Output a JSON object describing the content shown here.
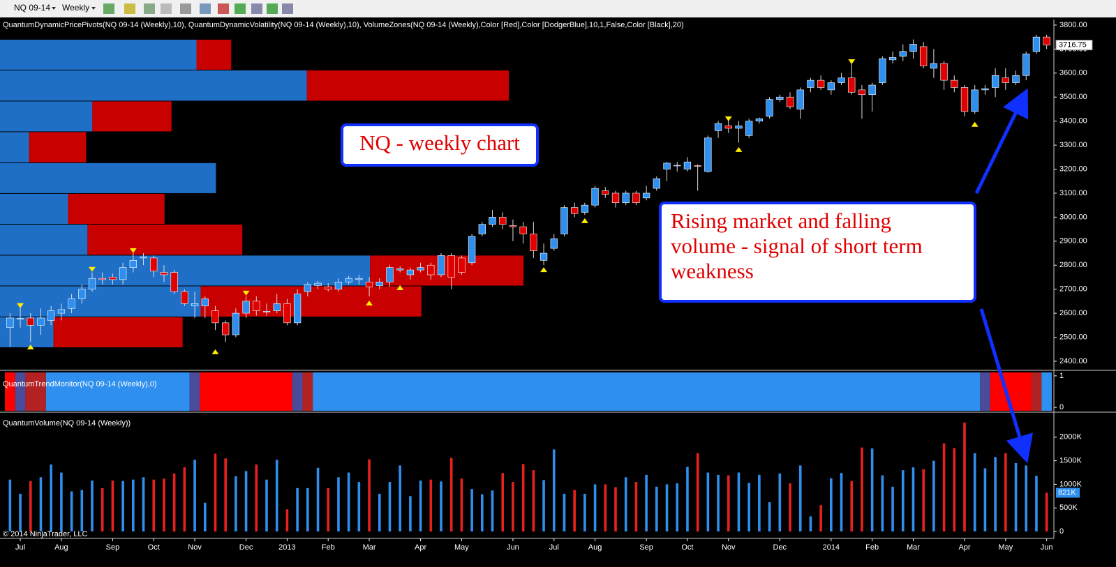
{
  "toolbar": {
    "instrument": "NQ 09-14",
    "interval": "Weekly"
  },
  "chart_data": [
    {
      "type": "candlestick",
      "indicator_label": "QuantumDynamicPricePivots(NQ 09-14 (Weekly),10), QuantumDynamicVolatility(NQ 09-14 (Weekly),10), VolumeZones(NQ 09-14 (Weekly),Color [Red],Color [DodgerBlue],10,1,False,Color [Black],20)",
      "open": [
        2540,
        2575,
        2580,
        2550,
        2570,
        2600,
        2620,
        2660,
        2700,
        2745,
        2750,
        2740,
        2790,
        2830,
        2830,
        2770,
        2770,
        2690,
        2630,
        2630,
        2610,
        2560,
        2510,
        2600,
        2650,
        2605,
        2610,
        2640,
        2560,
        2690,
        2715,
        2710,
        2700,
        2730,
        2740,
        2730,
        2715,
        2730,
        2780,
        2760,
        2780,
        2800,
        2760,
        2840,
        2830,
        2810,
        2930,
        2970,
        3000,
        2965,
        2960,
        2930,
        2820,
        2870,
        2930,
        3040,
        3020,
        3050,
        3110,
        3100,
        3060,
        3100,
        3080,
        3120,
        3200,
        3215,
        3200,
        3215,
        3190,
        3360,
        3380,
        3370,
        3340,
        3400,
        3420,
        3490,
        3500,
        3450,
        3540,
        3570,
        3530,
        3560,
        3580,
        3530,
        3510,
        3560,
        3655,
        3670,
        3690,
        3710,
        3620,
        3640,
        3570,
        3540,
        3440,
        3530,
        3540,
        3580,
        3560,
        3590,
        3690,
        3750
      ],
      "high": [
        2600,
        2630,
        2600,
        2620,
        2630,
        2640,
        2680,
        2720,
        2770,
        2770,
        2765,
        2810,
        2850,
        2850,
        2840,
        2800,
        2780,
        2700,
        2690,
        2670,
        2630,
        2570,
        2620,
        2670,
        2670,
        2640,
        2680,
        2660,
        2700,
        2730,
        2735,
        2725,
        2745,
        2755,
        2760,
        2750,
        2745,
        2800,
        2795,
        2790,
        2810,
        2810,
        2850,
        2850,
        2840,
        2930,
        2980,
        3030,
        3020,
        2990,
        2980,
        2980,
        2890,
        2930,
        3050,
        3060,
        3060,
        3130,
        3125,
        3110,
        3110,
        3110,
        3130,
        3170,
        3230,
        3230,
        3250,
        3220,
        3340,
        3400,
        3410,
        3400,
        3410,
        3415,
        3500,
        3510,
        3520,
        3540,
        3580,
        3590,
        3570,
        3600,
        3640,
        3550,
        3560,
        3670,
        3690,
        3720,
        3740,
        3730,
        3700,
        3650,
        3590,
        3550,
        3550,
        3550,
        3620,
        3620,
        3610,
        3690,
        3760,
        3760
      ],
      "low": [
        2460,
        2540,
        2480,
        2510,
        2550,
        2570,
        2600,
        2640,
        2690,
        2720,
        2720,
        2720,
        2770,
        2800,
        2750,
        2730,
        2680,
        2630,
        2580,
        2580,
        2530,
        2480,
        2500,
        2580,
        2590,
        2590,
        2600,
        2550,
        2550,
        2670,
        2700,
        2690,
        2690,
        2720,
        2720,
        2670,
        2700,
        2710,
        2770,
        2740,
        2770,
        2740,
        2750,
        2700,
        2760,
        2800,
        2920,
        2960,
        2950,
        2900,
        2890,
        2830,
        2800,
        2860,
        2920,
        3000,
        3010,
        3040,
        3080,
        3040,
        3050,
        3050,
        3070,
        3110,
        3150,
        3190,
        3190,
        3110,
        3185,
        3330,
        3350,
        3310,
        3330,
        3390,
        3410,
        3480,
        3450,
        3410,
        3520,
        3530,
        3510,
        3550,
        3510,
        3410,
        3440,
        3550,
        3640,
        3650,
        3660,
        3620,
        3580,
        3530,
        3520,
        3420,
        3430,
        3510,
        3500,
        3530,
        3550,
        3570,
        3680,
        3700
      ],
      "close": [
        2580,
        2578,
        2550,
        2580,
        2610,
        2615,
        2660,
        2700,
        2745,
        2740,
        2740,
        2790,
        2820,
        2835,
        2775,
        2760,
        2690,
        2640,
        2640,
        2660,
        2560,
        2510,
        2600,
        2650,
        2610,
        2608,
        2640,
        2560,
        2680,
        2720,
        2725,
        2700,
        2730,
        2745,
        2745,
        2710,
        2730,
        2790,
        2785,
        2780,
        2790,
        2760,
        2840,
        2750,
        2770,
        2920,
        2970,
        3000,
        2970,
        2960,
        2930,
        2860,
        2850,
        2910,
        3040,
        3015,
        3050,
        3120,
        3095,
        3060,
        3100,
        3060,
        3100,
        3160,
        3225,
        3216,
        3230,
        3212,
        3330,
        3390,
        3370,
        3380,
        3400,
        3410,
        3490,
        3500,
        3460,
        3530,
        3570,
        3540,
        3560,
        3580,
        3520,
        3510,
        3550,
        3660,
        3665,
        3690,
        3720,
        3630,
        3640,
        3570,
        3540,
        3440,
        3530,
        3535,
        3590,
        3560,
        3590,
        3680,
        3750,
        3716.75
      ],
      "up_color": "#2f8fef",
      "down_color": "#e00000",
      "pivot_highs": [
        null,
        2630,
        null,
        null,
        null,
        null,
        null,
        null,
        2781,
        null,
        null,
        null,
        2859,
        null,
        null,
        null,
        null,
        null,
        null,
        null,
        null,
        null,
        null,
        2682,
        null,
        null,
        null,
        null,
        null,
        null,
        null,
        null,
        null,
        null,
        null,
        null,
        null,
        null,
        null,
        null,
        null,
        null,
        null,
        null,
        null,
        null,
        null,
        null,
        null,
        null,
        null,
        null,
        null,
        null,
        null,
        null,
        null,
        null,
        null,
        null,
        null,
        null,
        null,
        null,
        null,
        null,
        null,
        null,
        null,
        null,
        3408,
        null,
        null,
        null,
        null,
        null,
        null,
        null,
        null,
        null,
        null,
        null,
        3646,
        null,
        null,
        null,
        null,
        null,
        null,
        null,
        null,
        null,
        null,
        null,
        null,
        null,
        null,
        null,
        null,
        null,
        null,
        null
      ],
      "pivot_lows": [
        null,
        null,
        2461,
        null,
        null,
        null,
        null,
        null,
        null,
        null,
        null,
        null,
        null,
        null,
        null,
        null,
        null,
        null,
        null,
        null,
        2441,
        null,
        null,
        null,
        null,
        null,
        null,
        null,
        null,
        null,
        null,
        null,
        null,
        null,
        null,
        2644,
        null,
        null,
        2708,
        null,
        null,
        null,
        null,
        null,
        null,
        null,
        null,
        null,
        null,
        null,
        null,
        null,
        2783,
        null,
        null,
        null,
        2987,
        null,
        null,
        null,
        null,
        null,
        null,
        null,
        null,
        null,
        null,
        null,
        null,
        null,
        null,
        3283,
        null,
        null,
        null,
        null,
        null,
        null,
        null,
        null,
        null,
        null,
        null,
        null,
        null,
        null,
        null,
        null,
        null,
        null,
        null,
        null,
        null,
        null,
        3388,
        null,
        null,
        null,
        null,
        null,
        null,
        null
      ],
      "pivot_color": "#ffee00",
      "volume_zones": {
        "edges": [
          3742,
          3614,
          3485,
          3357,
          3228,
          3100,
          2972,
          2843,
          2715,
          2586,
          2458
        ],
        "up": [
          283,
          442,
          133,
          42,
          311,
          98,
          126,
          533,
          289,
          77
        ],
        "down": [
          50,
          291,
          114,
          82,
          0,
          139,
          223,
          221,
          318,
          186
        ],
        "up_color": "#1f6fc6",
        "down_color": "#c80000"
      },
      "ylim": [
        2365,
        3823
      ],
      "yticks": [
        {
          "value": 2400,
          "label": "2400.00"
        },
        {
          "value": 2500,
          "label": "2500.00"
        },
        {
          "value": 2600,
          "label": "2600.00"
        },
        {
          "value": 2700,
          "label": "2700.00"
        },
        {
          "value": 2800,
          "label": "2800.00"
        },
        {
          "value": 2900,
          "label": "2900.00"
        },
        {
          "value": 3000,
          "label": "3000.00"
        },
        {
          "value": 3100,
          "label": "3100.00"
        },
        {
          "value": 3200,
          "label": "3200.00"
        },
        {
          "value": 3300,
          "label": "3300.00"
        },
        {
          "value": 3400,
          "label": "3400.00"
        },
        {
          "value": 3500,
          "label": "3500.00"
        },
        {
          "value": 3600,
          "label": "3600.00"
        },
        {
          "value": 3700,
          "label": "3700.00"
        },
        {
          "value": 3800,
          "label": "3800.00"
        }
      ],
      "annotations": [
        {
          "lines": [
            "NQ - weekly chart"
          ]
        },
        {
          "lines": [
            "Rising market and falling",
            "volume - signal  of short term",
            "weakness"
          ]
        }
      ]
    },
    {
      "type": "trend",
      "indicator_label": "QuantumTrendMonitor(NQ 09-14 (Weekly),0)",
      "segments": [
        {
          "count": 1,
          "color": "#ff0000"
        },
        {
          "count": 1,
          "color": "#4b4b9b"
        },
        {
          "count": 2,
          "color": "#b22222"
        },
        {
          "count": 14,
          "color": "#2f8fef"
        },
        {
          "count": 1,
          "color": "#4b4b9b"
        },
        {
          "count": 9,
          "color": "#ff0000"
        },
        {
          "count": 1,
          "color": "#4b4b9b"
        },
        {
          "count": 1,
          "color": "#b22222"
        },
        {
          "count": 65,
          "color": "#2f8fef"
        },
        {
          "count": 1,
          "color": "#4b4b9b"
        },
        {
          "count": 4,
          "color": "#ff0000"
        },
        {
          "count": 1,
          "color": "#b22222"
        },
        {
          "count": 1,
          "color": "#2f8fef"
        }
      ],
      "ylim": [
        -0.13,
        1.13
      ],
      "yticks": [
        0,
        1
      ]
    },
    {
      "type": "bar",
      "indicator_label": "QuantumVolume(NQ 09-14 (Weekly))",
      "categories": [
        null,
        "Jul",
        null,
        null,
        null,
        "Aug",
        null,
        null,
        null,
        null,
        "Sep",
        null,
        null,
        null,
        "Oct",
        null,
        null,
        null,
        "Nov",
        null,
        null,
        null,
        null,
        "Dec",
        null,
        null,
        null,
        "2013",
        null,
        null,
        null,
        "Feb",
        null,
        null,
        null,
        "Mar",
        null,
        null,
        null,
        null,
        "Apr",
        null,
        null,
        null,
        "May",
        null,
        null,
        null,
        null,
        "Jun",
        null,
        null,
        null,
        "Jul",
        null,
        null,
        null,
        "Aug",
        null,
        null,
        null,
        null,
        "Sep",
        null,
        null,
        null,
        "Oct",
        null,
        null,
        null,
        "Nov",
        null,
        null,
        null,
        null,
        "Dec",
        null,
        null,
        null,
        null,
        "2014",
        null,
        null,
        null,
        "Feb",
        null,
        null,
        null,
        "Mar",
        null,
        null,
        null,
        null,
        "Apr",
        null,
        null,
        null,
        "May",
        null,
        null,
        null,
        "Jun"
      ],
      "values": [
        1100,
        800,
        1070,
        1150,
        1420,
        1250,
        850,
        880,
        1080,
        920,
        1080,
        1070,
        1100,
        1150,
        1100,
        1120,
        1230,
        1360,
        1520,
        610,
        1650,
        1550,
        1170,
        1280,
        1420,
        1100,
        1520,
        470,
        920,
        920,
        1350,
        920,
        1150,
        1250,
        1050,
        1530,
        800,
        1050,
        1400,
        750,
        1080,
        1100,
        1060,
        1560,
        1120,
        900,
        790,
        870,
        1240,
        1050,
        1430,
        1300,
        1090,
        1740,
        800,
        880,
        800,
        1000,
        1000,
        940,
        1150,
        1050,
        1200,
        950,
        1000,
        1020,
        1370,
        1660,
        1250,
        1200,
        1190,
        1250,
        1030,
        1200,
        620,
        1230,
        1020,
        1400,
        320,
        560,
        1130,
        1240,
        1070,
        1780,
        1760,
        1190,
        950,
        1300,
        1360,
        1320,
        1500,
        1870,
        1770,
        2310,
        1660,
        1340,
        1580,
        1660,
        1450,
        1400,
        1180,
        821
      ],
      "value_labels": [
        null,
        null,
        null,
        null,
        null,
        null,
        null,
        null,
        null,
        null,
        null,
        null,
        null,
        null,
        null,
        null,
        null,
        null,
        null,
        null,
        null,
        null,
        null,
        null,
        null,
        null,
        null,
        null,
        null,
        null,
        null,
        null,
        null,
        null,
        null,
        null,
        null,
        null,
        null,
        null,
        null,
        null,
        null,
        null,
        null,
        null,
        null,
        null,
        null,
        null,
        null,
        null,
        null,
        null,
        null,
        null,
        null,
        null,
        null,
        null,
        null,
        null,
        null,
        null,
        null,
        null,
        null,
        null,
        null,
        null,
        null,
        null,
        null,
        null,
        null,
        null,
        null,
        null,
        null,
        null,
        null,
        null,
        null,
        null,
        null,
        null,
        null,
        null,
        null,
        null,
        null,
        null,
        null,
        null,
        null,
        null,
        null,
        null,
        null,
        null,
        null,
        "821K"
      ],
      "up_color": "#2f8fef",
      "down_color": "#e8201e",
      "ylim": [
        -147,
        2500
      ],
      "yticks": [
        0,
        {
          "value": 500,
          "label": "500K"
        },
        {
          "value": 1000,
          "label": "1000K"
        },
        {
          "value": 1500,
          "label": "1500K"
        },
        {
          "value": 2000,
          "label": "2000K"
        }
      ],
      "copyright": "© 2014 NinjaTrader, LLC"
    }
  ]
}
